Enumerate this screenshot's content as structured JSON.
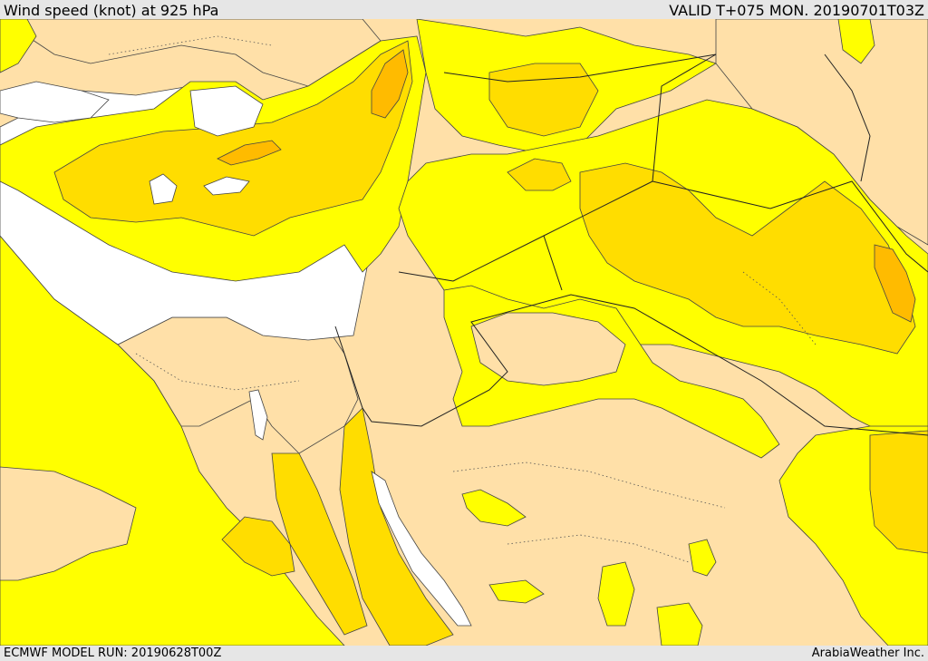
{
  "header": {
    "title": "Wind speed (knot) at 925 hPa",
    "valid_time": "VALID T+075 MON. 20190701T03Z"
  },
  "footer": {
    "model_run": "ECMWF MODEL RUN: 20190628T00Z",
    "credit": "ArabiaWeather Inc."
  },
  "map": {
    "colors": {
      "land_calm": "#ffe0a8",
      "wind_moderate": "#ffff00",
      "wind_strong": "#ffdd00",
      "wind_very_strong": "#ffbb00",
      "sea_calm": "#ffffff",
      "contour": "#444444",
      "border": "#222222"
    }
  }
}
